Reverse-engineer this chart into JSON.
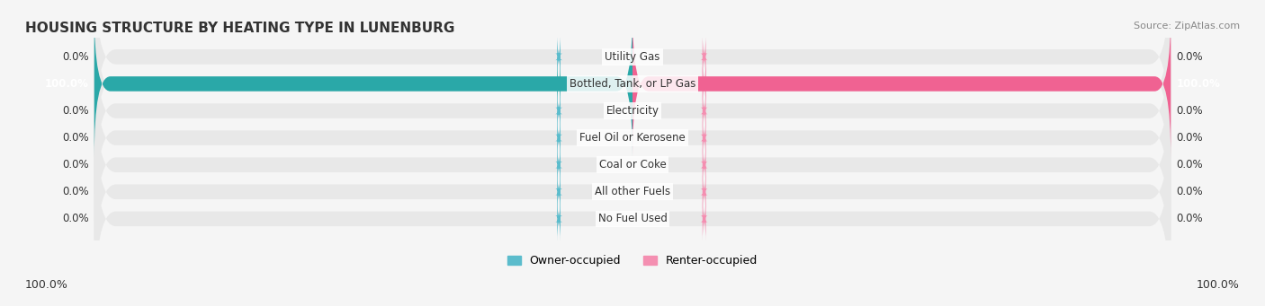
{
  "title": "HOUSING STRUCTURE BY HEATING TYPE IN LUNENBURG",
  "source": "Source: ZipAtlas.com",
  "categories": [
    "Utility Gas",
    "Bottled, Tank, or LP Gas",
    "Electricity",
    "Fuel Oil or Kerosene",
    "Coal or Coke",
    "All other Fuels",
    "No Fuel Used"
  ],
  "owner_values": [
    0.0,
    100.0,
    0.0,
    0.0,
    0.0,
    0.0,
    0.0
  ],
  "renter_values": [
    0.0,
    100.0,
    0.0,
    0.0,
    0.0,
    0.0,
    0.0
  ],
  "owner_color": "#5bbccc",
  "renter_color": "#f48fb1",
  "owner_label": "Owner-occupied",
  "renter_label": "Renter-occupied",
  "bar_background_color": "#e8e8e8",
  "bar_active_row_color": "#2aa8a8",
  "bar_active_renter_color": "#f06292",
  "xlim": 100,
  "bar_height": 0.55,
  "background_color": "#f5f5f5",
  "title_fontsize": 11,
  "label_fontsize": 8.5,
  "axis_label_fontsize": 9
}
